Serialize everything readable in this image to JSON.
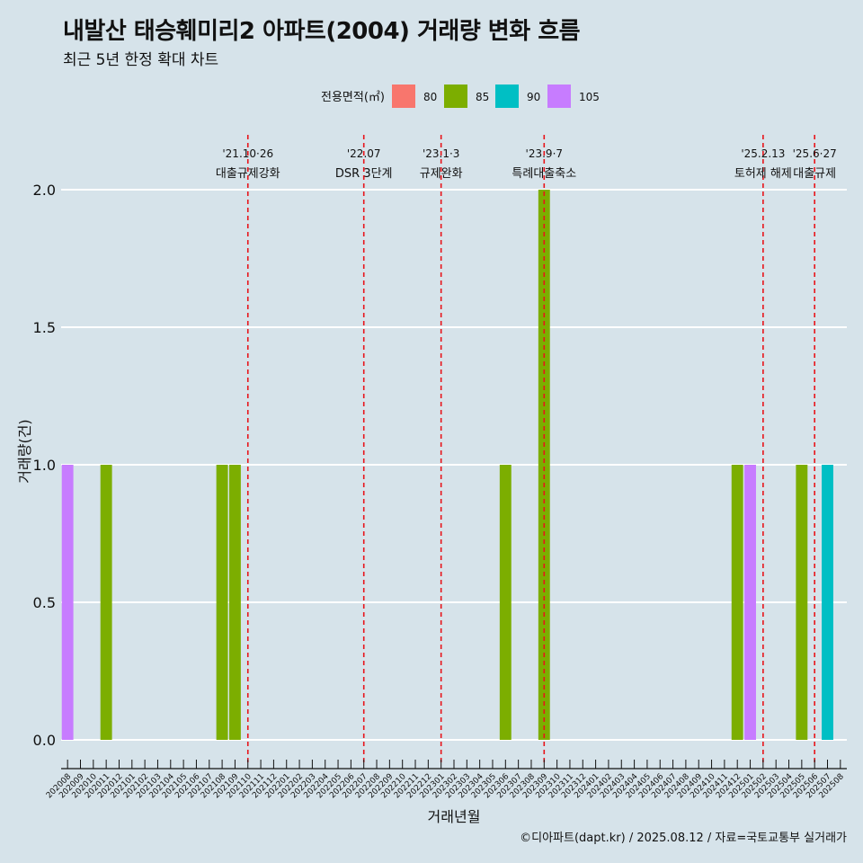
{
  "title": "내발산 태승훼미리2 아파트(2004) 거래량 변화 흐름",
  "subtitle": "최근 5년 한정 확대 차트",
  "caption": "©디아파트(dapt.kr) / 2025.08.12 / 자료=국토교통부 실거래가",
  "chart_data": {
    "type": "bar",
    "stacked": true,
    "xlabel": "거래년월",
    "ylabel": "거래량(건)",
    "ylim": [
      0,
      2
    ],
    "yticks": [
      0.0,
      0.5,
      1.0,
      1.5,
      2.0
    ],
    "ytick_labels": [
      "0.0",
      "0.5",
      "1.0",
      "1.5",
      "2.0"
    ],
    "categories": [
      "202008",
      "202009",
      "202010",
      "202011",
      "202012",
      "202101",
      "202102",
      "202103",
      "202104",
      "202105",
      "202106",
      "202107",
      "202108",
      "202109",
      "202110",
      "202111",
      "202112",
      "202201",
      "202202",
      "202203",
      "202204",
      "202205",
      "202206",
      "202207",
      "202208",
      "202209",
      "202210",
      "202211",
      "202212",
      "202301",
      "202302",
      "202303",
      "202304",
      "202305",
      "202306",
      "202307",
      "202308",
      "202309",
      "202310",
      "202311",
      "202312",
      "202401",
      "202402",
      "202403",
      "202404",
      "202405",
      "202406",
      "202407",
      "202408",
      "202409",
      "202410",
      "202411",
      "202412",
      "202501",
      "202502",
      "202503",
      "202504",
      "202505",
      "202506",
      "202507",
      "202508"
    ],
    "legend_title": "전용면적(㎡)",
    "legend_position": "top",
    "series": [
      {
        "name": "80",
        "color": "#f8766d",
        "values": {}
      },
      {
        "name": "85",
        "color": "#7cae00",
        "values": {
          "202011": 1,
          "202108": 1,
          "202109": 1,
          "202306": 1,
          "202309": 2,
          "202412": 1,
          "202505": 1
        }
      },
      {
        "name": "90",
        "color": "#00bfc4",
        "values": {
          "202507": 1
        }
      },
      {
        "name": "105",
        "color": "#c77cff",
        "values": {
          "202008": 1,
          "202501": 1
        }
      }
    ],
    "events": [
      {
        "date_label": "'21.10·26",
        "text": "대출규제강화",
        "x": "202110"
      },
      {
        "date_label": "'22.07",
        "text": "DSR 3단계",
        "x": "202207"
      },
      {
        "date_label": "'23.1·3",
        "text": "규제완화",
        "x": "202301"
      },
      {
        "date_label": "'23.9·7",
        "text": "특례대출축소",
        "x": "202309"
      },
      {
        "date_label": "'25.2.13",
        "text": "토허제 해제",
        "x": "202502"
      },
      {
        "date_label": "'25.6·27",
        "text": "대출규제",
        "x": "202506"
      }
    ],
    "grid": true
  }
}
